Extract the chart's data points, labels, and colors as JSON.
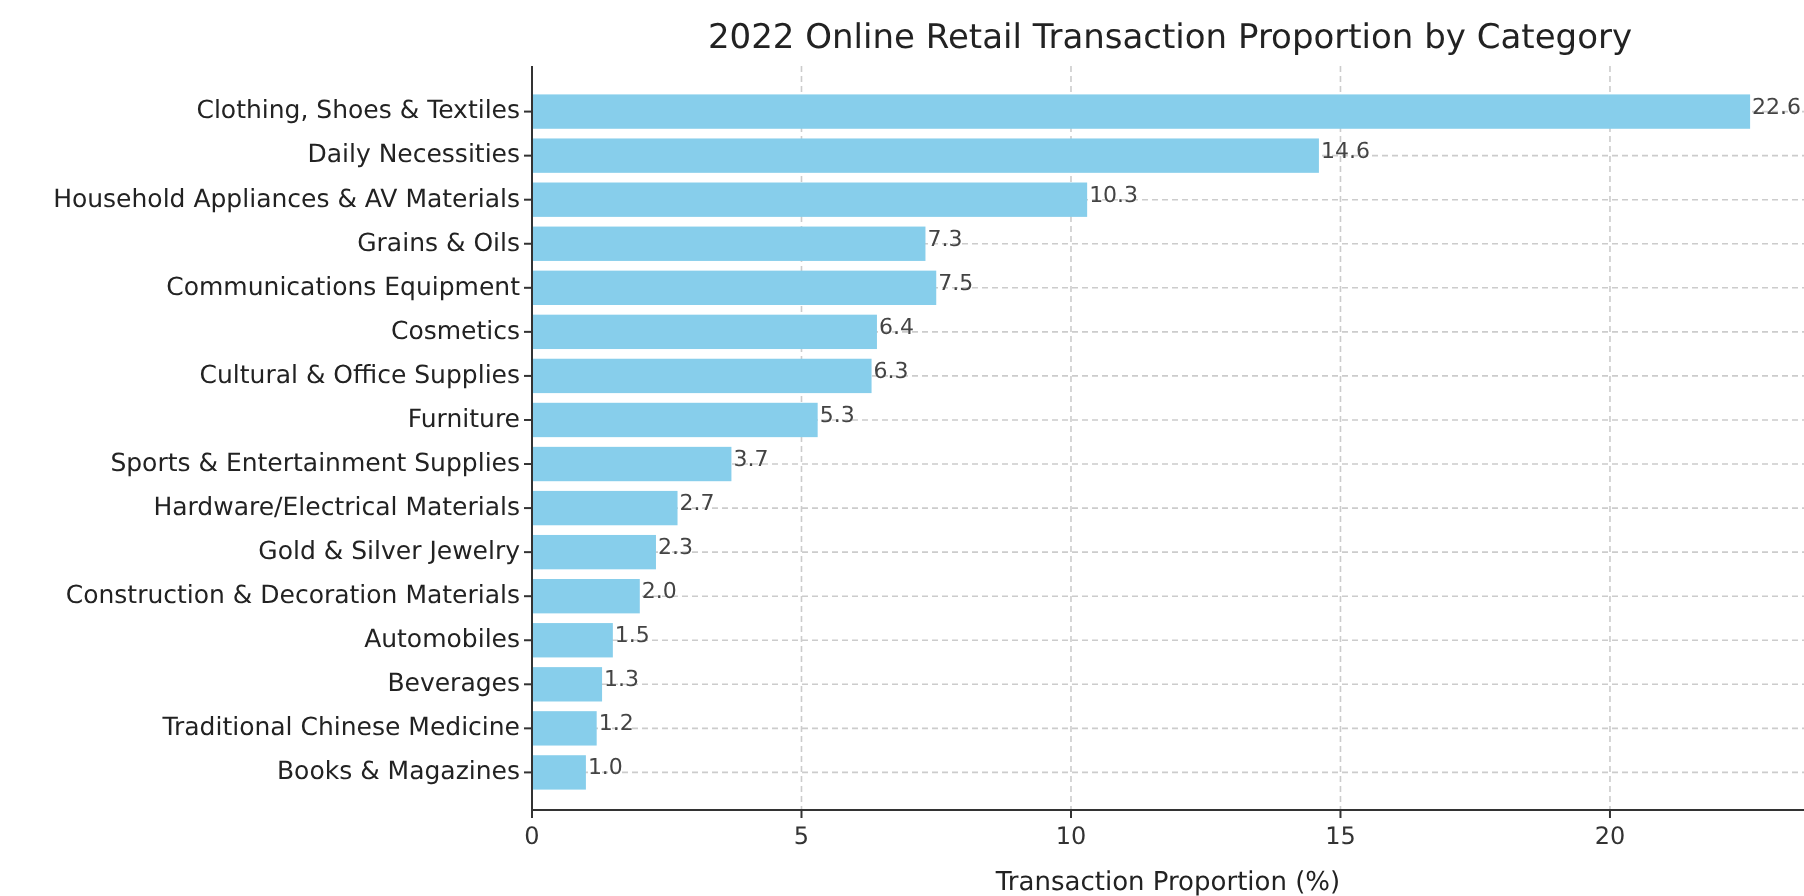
{
  "chart_data": {
    "type": "bar",
    "orientation": "horizontal",
    "title": "2022 Online Retail Transaction Proportion by Category",
    "xlabel": "Transaction Proportion (%)",
    "categories": [
      "Clothing, Shoes & Textiles",
      "Daily Necessities",
      "Household Appliances & AV Materials",
      "Grains & Oils",
      "Communications Equipment",
      "Cosmetics",
      "Cultural & Office Supplies",
      "Furniture",
      "Sports & Entertainment Supplies",
      "Hardware/Electrical Materials",
      "Gold & Silver Jewelry",
      "Construction & Decoration Materials",
      "Automobiles",
      "Beverages",
      "Traditional Chinese Medicine",
      "Books & Magazines"
    ],
    "values": [
      22.6,
      14.6,
      10.3,
      7.3,
      7.5,
      6.4,
      6.3,
      5.3,
      3.7,
      2.7,
      2.3,
      2.0,
      1.5,
      1.3,
      1.2,
      1.0
    ],
    "color": "#87ceeb",
    "value_labels": [
      "22.6",
      "14.6",
      "10.3",
      "7.3",
      "7.5",
      "6.4",
      "6.3",
      "5.3",
      "3.7",
      "2.7",
      "2.3",
      "2.0",
      "1.5",
      "1.3",
      "1.2",
      "1.0"
    ],
    "xlim": [
      0,
      23.6
    ],
    "xticks": [
      0,
      5,
      10,
      15,
      20
    ],
    "grid": true
  }
}
